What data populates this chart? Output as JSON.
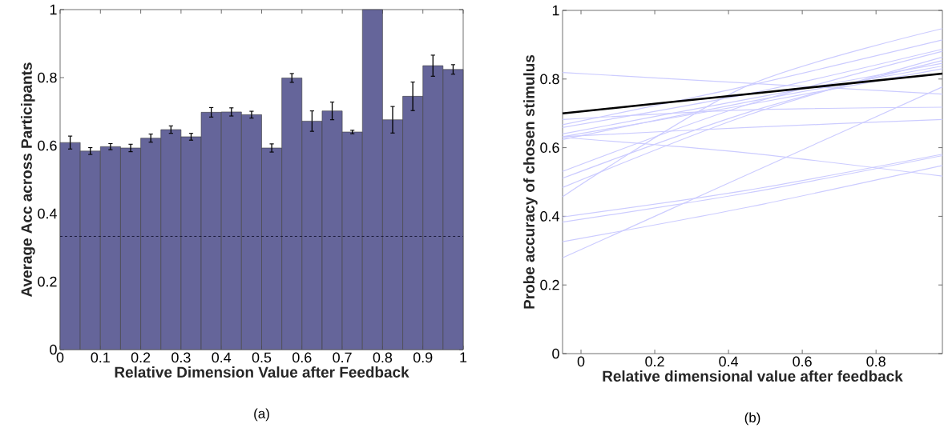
{
  "chart_data": [
    {
      "type": "histogram",
      "xlabel": "Relative Dimension Value after Feedback",
      "ylabel": "Average Acc across Participants",
      "annotations": [
        "(a)"
      ],
      "bins": [
        0,
        0.05,
        0.1,
        0.15,
        0.2,
        0.25,
        0.3,
        0.35,
        0.4,
        0.45,
        0.5,
        0.55,
        0.6,
        0.65,
        0.7,
        0.75,
        0.8,
        0.85,
        0.9,
        0.95,
        1
      ],
      "values": [
        0.609,
        0.584,
        0.597,
        0.593,
        0.622,
        0.647,
        0.626,
        0.698,
        0.699,
        0.691,
        0.593,
        0.799,
        0.672,
        0.702,
        0.64,
        1.0,
        0.676,
        0.745,
        0.835,
        0.824
      ],
      "errors": [
        0.019,
        0.01,
        0.009,
        0.011,
        0.012,
        0.011,
        0.01,
        0.014,
        0.012,
        0.01,
        0.012,
        0.013,
        0.03,
        0.026,
        0.005,
        null,
        0.039,
        0.042,
        0.031,
        0.014
      ],
      "color": "#65659a",
      "xlim": [
        0,
        1
      ],
      "ylim": [
        0,
        1
      ],
      "xticks": [
        0,
        0.1,
        0.2,
        0.3,
        0.4,
        0.5,
        0.6,
        0.7,
        0.8,
        0.9,
        1
      ],
      "yticks": [
        0,
        0.2,
        0.4,
        0.6,
        0.8,
        1
      ],
      "ref_lines": [
        {
          "axis": "y",
          "value": 0.333,
          "color": "#1a1a3a",
          "line_style": "dashed"
        }
      ]
    },
    {
      "type": "line",
      "xlabel": "Relative dimensional value after feedback",
      "ylabel": "Probe accuracy of chosen stimulus",
      "annotations": [
        "(b)"
      ],
      "x": [
        -0.05,
        0.45,
        0.98
      ],
      "series": [
        {
          "color": "#ccccff",
          "values": [
            0.819,
            0.788,
            0.756
          ]
        },
        {
          "color": "#ccccff",
          "values": [
            0.63,
            0.585,
            0.517
          ]
        },
        {
          "color": "#ccccff",
          "values": [
            0.279,
            0.521,
            0.777
          ]
        },
        {
          "color": "#ccccff",
          "values": [
            0.326,
            0.426,
            0.548
          ]
        },
        {
          "color": "#ccccff",
          "values": [
            0.398,
            0.476,
            0.581
          ]
        },
        {
          "color": "#ccccff",
          "values": [
            0.383,
            0.468,
            0.577
          ]
        },
        {
          "color": "#ccccff",
          "values": [
            0.632,
            0.659,
            0.682
          ]
        },
        {
          "color": "#ccccff",
          "values": [
            0.682,
            0.71,
            0.718
          ]
        },
        {
          "color": "#ccccff",
          "values": [
            0.531,
            0.725,
            0.881
          ]
        },
        {
          "color": "#ccccff",
          "values": [
            0.511,
            0.702,
            0.854
          ]
        },
        {
          "color": "#ccccff",
          "values": [
            0.484,
            0.694,
            0.864
          ]
        },
        {
          "color": "#ccccff",
          "values": [
            0.457,
            0.78,
            0.947
          ]
        },
        {
          "color": "#ccccff",
          "values": [
            0.667,
            0.78,
            0.914
          ]
        },
        {
          "color": "#ccccff",
          "values": [
            0.659,
            0.756,
            0.887
          ]
        },
        {
          "color": "#ccccff",
          "values": [
            0.64,
            0.741,
            0.846
          ]
        },
        {
          "color": "#ccccff",
          "values": [
            0.624,
            0.733,
            0.838
          ]
        },
        {
          "color": "#ccccff",
          "values": [
            0.632,
            0.725,
            0.83
          ]
        },
        {
          "color": "#000000",
          "values": [
            0.7,
            0.756,
            0.816
          ]
        }
      ],
      "xlim": [
        -0.05,
        0.98
      ],
      "ylim": [
        0,
        1
      ],
      "xticks": [
        0,
        0.2,
        0.4,
        0.6,
        0.8
      ],
      "yticks": [
        0,
        0.2,
        0.4,
        0.6,
        0.8,
        1
      ]
    }
  ]
}
